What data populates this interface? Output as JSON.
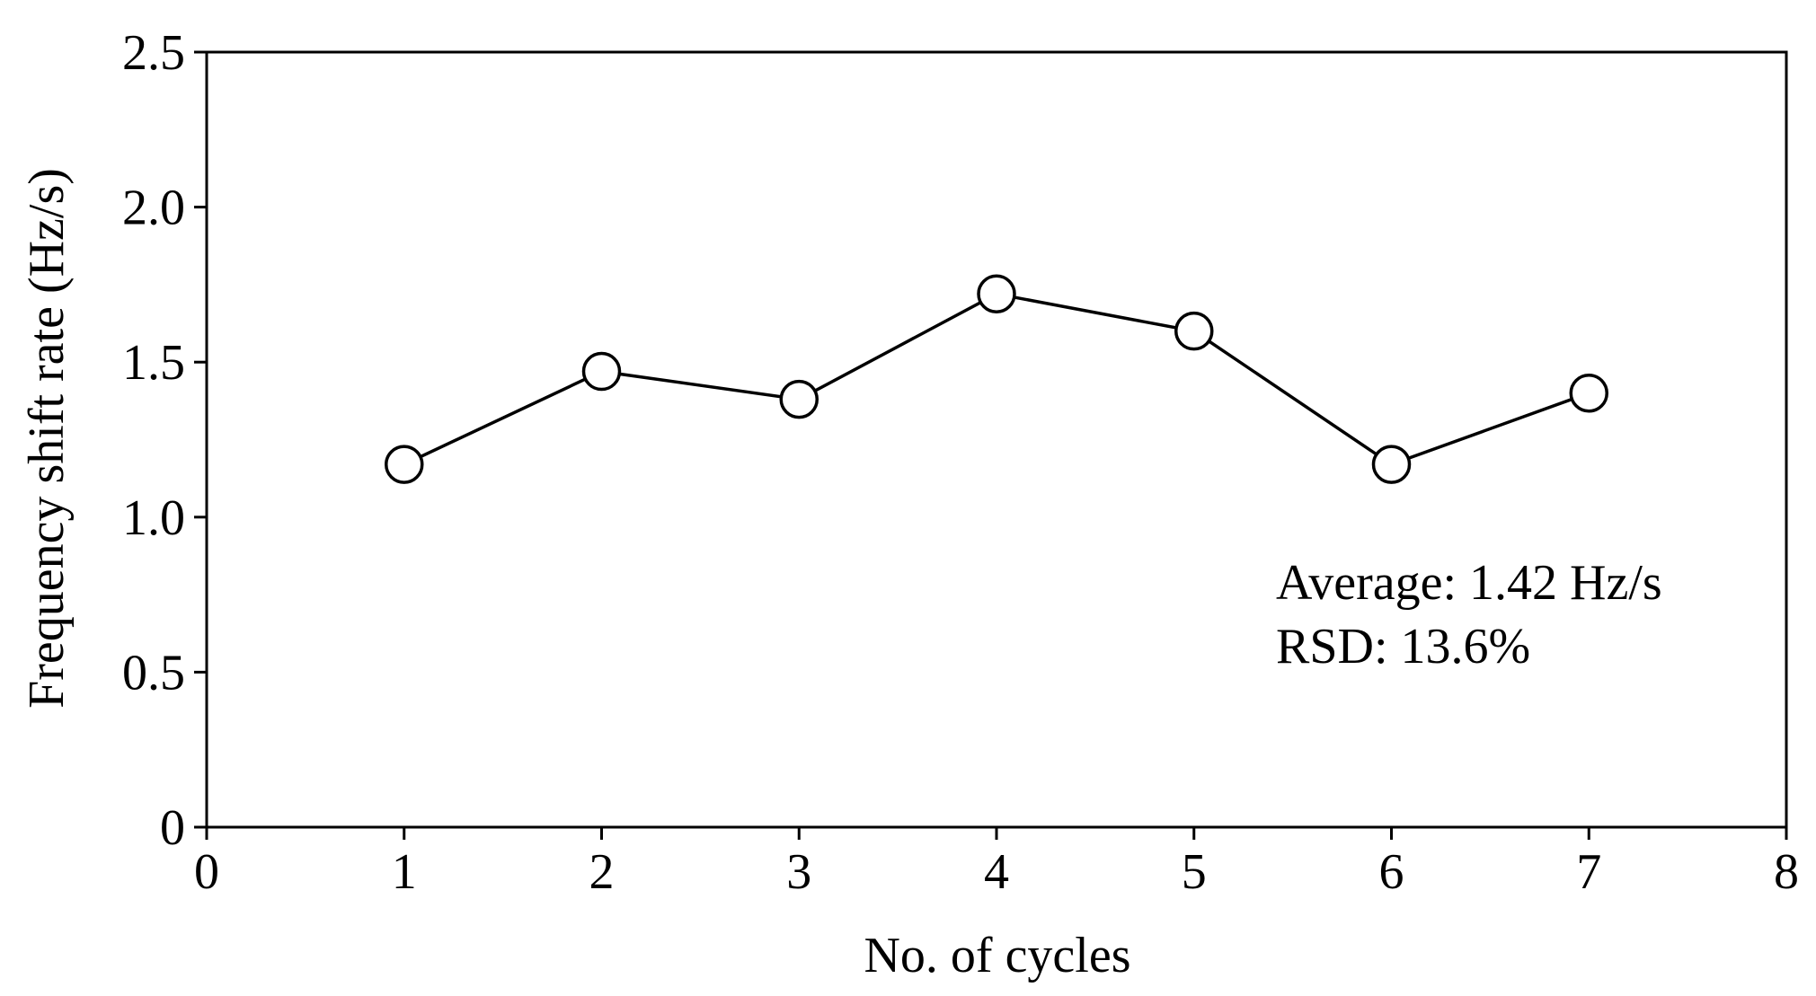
{
  "chart_data": {
    "type": "line",
    "title": "",
    "xlabel": "No. of cycles",
    "ylabel": "Frequency shift rate (Hz/s)",
    "xlim": [
      0,
      8
    ],
    "ylim": [
      0,
      2.5
    ],
    "x_ticks": [
      "0",
      "1",
      "2",
      "3",
      "4",
      "5",
      "6",
      "7",
      "8"
    ],
    "y_ticks": [
      "0",
      "0.5",
      "1.0",
      "1.5",
      "2.0",
      "2.5"
    ],
    "grid": false,
    "marker": "open-circle",
    "series": [
      {
        "x": [
          1,
          2,
          3,
          4,
          5,
          6,
          7
        ],
        "values": [
          1.17,
          1.47,
          1.38,
          1.72,
          1.6,
          1.17,
          1.4
        ]
      }
    ],
    "annotations": [
      "Average: 1.42 Hz/s",
      "RSD: 13.6%"
    ]
  }
}
